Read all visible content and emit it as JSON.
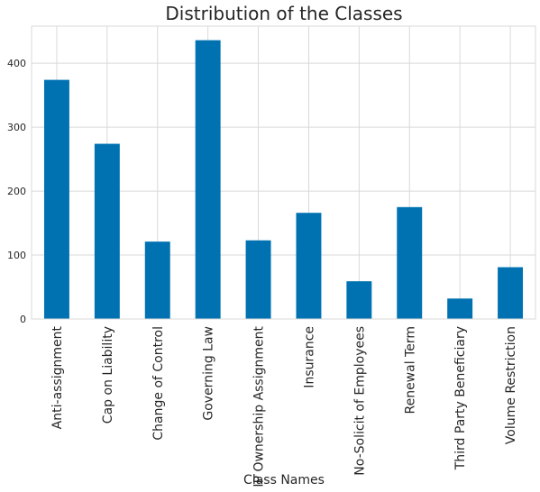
{
  "chart_data": {
    "type": "bar",
    "title": "Distribution of the Classes",
    "xlabel": "Class Names",
    "ylabel": "",
    "categories": [
      "Anti-assignment",
      "Cap on Liability",
      "Change of Control",
      "Governing Law",
      "IP Ownership Assignment",
      "Insurance",
      "No-Solicit of Employees",
      "Renewal Term",
      "Third Party Beneficiary",
      "Volume Restriction"
    ],
    "values": [
      374,
      274,
      121,
      436,
      123,
      166,
      59,
      175,
      32,
      81
    ],
    "ylim": [
      0,
      458
    ],
    "yticks": [
      0,
      100,
      200,
      300,
      400
    ],
    "grid": true,
    "legend": "none",
    "bar_color": "#0072b2",
    "grid_color": "#d9d9d9"
  }
}
